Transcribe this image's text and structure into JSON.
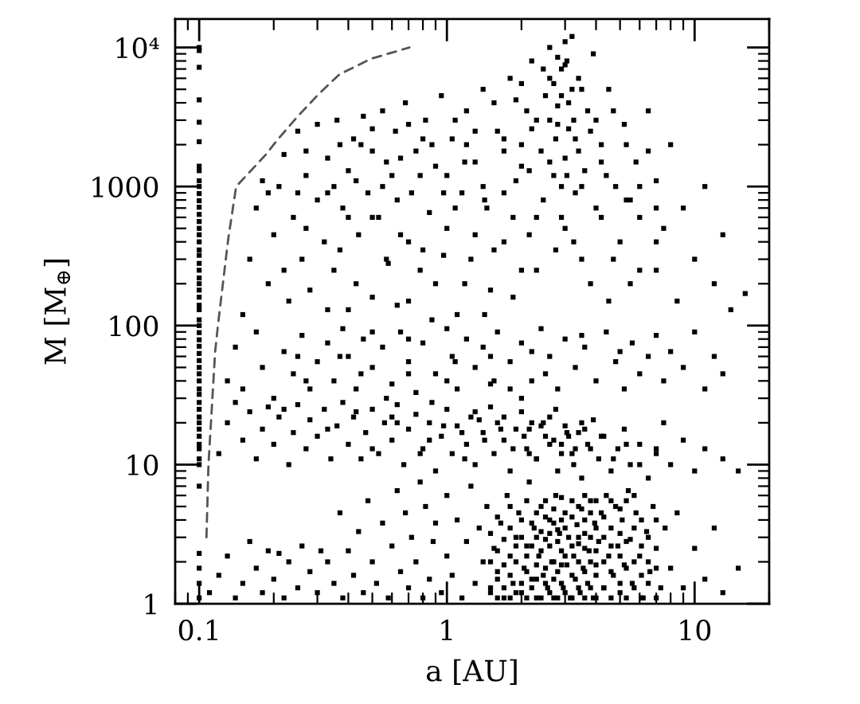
{
  "chart_data": {
    "type": "scatter",
    "xlabel": "a [AU]",
    "ylabel": "M [M$_{⊕}$]",
    "log": "xy",
    "xlim": [
      0.08,
      20
    ],
    "ylim": [
      1,
      16000
    ],
    "xticks": [
      0.1,
      1,
      10
    ],
    "yticks": [
      1,
      10,
      100,
      1000,
      {
        "value": 10000,
        "label": "10⁴"
      }
    ],
    "marker": "square",
    "series": [
      {
        "color": "#000000",
        "x": [
          0.15,
          0.16,
          0.17,
          0.18,
          0.19,
          0.2,
          0.21,
          0.22,
          0.23,
          0.24,
          0.25,
          0.26,
          0.27,
          0.28,
          0.3,
          0.3,
          0.32,
          0.33,
          0.35,
          0.36,
          0.38,
          0.4,
          0.4,
          0.42,
          0.44,
          0.46,
          0.48,
          0.5,
          0.5,
          0.53,
          0.55,
          0.58,
          0.6,
          0.62,
          0.65,
          0.68,
          0.7,
          0.72,
          0.75,
          0.8,
          0.82,
          0.85,
          0.9,
          0.9,
          0.95,
          1.0,
          1.05,
          1.1,
          1.15,
          1.2,
          1.25,
          1.3,
          1.4,
          1.45,
          1.5,
          1.6,
          1.7,
          1.8,
          1.9,
          2.0,
          2.1,
          2.2,
          2.3,
          2.4,
          2.5,
          2.6,
          2.7,
          2.8,
          2.9,
          3.0,
          3.0,
          3.1,
          3.2,
          3.3,
          3.3,
          3.4,
          3.5,
          3.6,
          3.7,
          3.9,
          4.0,
          4.2,
          4.5,
          4.5,
          4.8,
          5.0,
          5.2,
          5.5,
          5.8,
          6.0,
          6.5,
          7.0,
          7.0,
          7.5,
          8.0,
          8.5,
          9.0,
          10,
          11,
          12,
          13,
          14,
          16,
          2.7,
          2.8,
          3.0,
          3.1,
          3.2,
          2.9,
          3.4,
          2.6,
          3.0,
          2.8,
          0.35,
          0.45,
          0.55,
          0.65,
          0.8,
          1.0,
          1.2,
          1.4,
          1.7,
          2.0,
          2.2,
          4.0,
          4.4,
          5.5,
          6.5,
          1.9,
          0.4,
          0.25,
          0.19
        ],
        "values": [
          120,
          300,
          700,
          1100,
          200,
          450,
          1000,
          1700,
          150,
          600,
          2500,
          300,
          1200,
          180,
          800,
          2800,
          400,
          1600,
          250,
          3000,
          700,
          130,
          1300,
          2200,
          450,
          3200,
          900,
          160,
          1800,
          600,
          3500,
          280,
          1200,
          2500,
          450,
          4000,
          150,
          900,
          1800,
          350,
          3000,
          650,
          200,
          1400,
          4500,
          500,
          2200,
          120,
          900,
          3500,
          300,
          1500,
          5000,
          700,
          180,
          2500,
          400,
          6000,
          1100,
          250,
          3500,
          8000,
          600,
          1800,
          4500,
          10000,
          1200,
          2800,
          7000,
          500,
          1600,
          4000,
          12000,
          900,
          2200,
          6000,
          300,
          1300,
          3500,
          9000,
          700,
          2000,
          150,
          5000,
          1000,
          400,
          2800,
          200,
          1500,
          600,
          3500,
          250,
          1100,
          500,
          2000,
          150,
          700,
          300,
          1000,
          200,
          450,
          130,
          170,
          5500,
          3800,
          7500,
          2600,
          5000,
          1000,
          1800,
          3000,
          11000,
          8500,
          1000,
          2000,
          1000,
          1600,
          2200,
          1200,
          2000,
          1000,
          1800,
          1400,
          2600,
          3000,
          1200,
          800,
          1800,
          4200,
          600,
          900,
          900
        ]
      },
      {
        "color": "#000000",
        "x": [
          0.13,
          0.14,
          0.15,
          0.17,
          0.18,
          0.2,
          0.22,
          0.24,
          0.26,
          0.28,
          0.3,
          0.33,
          0.35,
          0.38,
          0.4,
          0.43,
          0.46,
          0.5,
          0.55,
          0.6,
          0.65,
          0.7,
          0.75,
          0.8,
          0.9,
          1.0,
          1.05,
          1.1,
          1.2,
          1.3,
          1.4,
          1.5,
          1.6,
          1.8,
          2.0,
          2.2,
          2.4,
          2.6,
          2.8,
          3.0,
          3.3,
          3.6,
          4.0,
          4.4,
          4.8,
          5.2,
          5.6,
          6.0,
          6.5,
          7.0,
          7.5,
          8.0,
          9.0,
          10,
          11,
          12,
          13,
          0.45,
          0.7,
          1.5,
          2.5,
          3.5,
          0.25,
          1.8,
          5.0,
          2.2,
          1.0
        ],
        "values": [
          40,
          70,
          35,
          90,
          50,
          30,
          65,
          45,
          85,
          35,
          55,
          75,
          40,
          95,
          60,
          35,
          80,
          50,
          70,
          38,
          90,
          55,
          33,
          75,
          45,
          95,
          60,
          35,
          80,
          50,
          70,
          38,
          90,
          55,
          75,
          40,
          95,
          60,
          35,
          80,
          50,
          70,
          40,
          90,
          55,
          35,
          75,
          45,
          60,
          85,
          40,
          65,
          50,
          90,
          35,
          60,
          45,
          45,
          80,
          60,
          45,
          85,
          60,
          35,
          65,
          65,
          40
        ]
      },
      {
        "color": "#000000",
        "x": [
          0.12,
          0.13,
          0.14,
          0.15,
          0.16,
          0.17,
          0.18,
          0.19,
          0.2,
          0.21,
          0.23,
          0.24,
          0.25,
          0.27,
          0.28,
          0.3,
          0.32,
          0.34,
          0.36,
          0.38,
          0.4,
          0.42,
          0.45,
          0.47,
          0.5,
          0.53,
          0.56,
          0.6,
          0.63,
          0.67,
          0.7,
          0.75,
          0.8,
          0.85,
          0.9,
          0.95,
          1.0,
          1.05,
          1.1,
          1.2,
          1.25,
          1.3,
          1.4,
          1.5,
          1.55,
          1.6,
          1.7,
          1.8,
          1.9,
          2.0,
          2.1,
          2.2,
          2.3,
          2.5,
          2.6,
          2.8,
          2.9,
          3.0,
          3.2,
          3.4,
          3.5,
          3.7,
          3.9,
          4.1,
          4.3,
          4.6,
          4.9,
          5.2,
          5.5,
          6.0,
          6.5,
          7.0,
          7.5,
          8.0,
          9.0,
          10,
          11,
          13,
          15,
          1.15,
          1.35,
          1.65,
          2.05,
          2.4,
          2.7,
          3.1,
          3.3,
          3.6,
          2.15,
          0.6,
          0.85
        ],
        "values": [
          12,
          20,
          28,
          15,
          24,
          11,
          18,
          26,
          14,
          22,
          10,
          17,
          27,
          13,
          21,
          16,
          25,
          11,
          19,
          28,
          14,
          22,
          11,
          17,
          25,
          12,
          20,
          15,
          27,
          10,
          18,
          23,
          13,
          20,
          9,
          16,
          25,
          12,
          19,
          14,
          22,
          10,
          17,
          26,
          12,
          20,
          15,
          9,
          18,
          24,
          13,
          20,
          11,
          16,
          22,
          9,
          14,
          19,
          12,
          17,
          8,
          14,
          21,
          11,
          16,
          9,
          13,
          18,
          10,
          14,
          8,
          12,
          20,
          10,
          15,
          9,
          13,
          11,
          9,
          17,
          21,
          18,
          16,
          19,
          15,
          16,
          13,
          18,
          12,
          22,
          15
        ]
      },
      {
        "color": "#000000",
        "x": [
          0.11,
          0.12,
          0.13,
          0.14,
          0.15,
          0.16,
          0.17,
          0.18,
          0.19,
          0.2,
          0.21,
          0.22,
          0.23,
          0.25,
          0.26,
          0.28,
          0.3,
          0.31,
          0.33,
          0.35,
          0.37,
          0.38,
          0.4,
          0.42,
          0.44,
          0.46,
          0.48,
          0.5,
          0.52,
          0.55,
          0.58,
          0.6,
          0.63,
          0.65,
          0.68,
          0.7,
          0.72,
          0.75,
          0.78,
          0.8,
          0.82,
          0.85,
          0.88,
          0.9,
          0.95,
          1.0,
          1.0,
          1.05,
          1.1,
          1.15,
          1.2,
          1.25,
          1.3,
          1.35,
          1.4,
          1.45,
          1.5,
          1.55,
          1.6,
          1.65,
          1.7,
          1.75,
          1.8,
          1.85,
          1.9,
          1.95,
          2.0,
          2.05,
          2.1,
          2.15,
          2.2,
          2.25,
          2.3,
          2.35,
          2.4,
          2.45,
          2.5,
          2.55,
          2.6,
          2.65,
          2.7,
          2.75,
          2.8,
          2.85,
          2.9,
          2.95,
          3.0,
          3.05,
          3.1,
          3.15,
          3.2,
          3.25,
          3.3,
          3.35,
          3.4,
          3.45,
          3.5,
          3.55,
          3.6,
          3.7,
          3.75,
          3.8,
          3.9,
          3.95,
          4.0,
          4.1,
          4.2,
          4.3,
          4.4,
          4.5,
          4.6,
          4.7,
          4.8,
          4.9,
          5.0,
          5.1,
          5.2,
          5.4,
          5.5,
          5.6,
          5.8,
          6.0,
          6.2,
          6.4,
          6.6,
          6.8,
          7.0,
          7.3,
          7.6,
          8.0,
          8.5,
          9.0,
          10,
          11,
          12,
          13,
          15
        ],
        "values": [
          1.2,
          1.6,
          2.2,
          1.1,
          1.4,
          2.8,
          1.8,
          1.2,
          2.4,
          1.5,
          2.3,
          1.1,
          2.0,
          1.3,
          2.6,
          1.7,
          1.2,
          2.4,
          2.0,
          1.4,
          4.5,
          1.1,
          2.4,
          1.6,
          3.3,
          1.2,
          5.5,
          2.0,
          1.4,
          3.8,
          1.1,
          2.6,
          6.5,
          1.7,
          4.5,
          1.3,
          3.0,
          2.0,
          7.5,
          1.1,
          5.0,
          1.5,
          2.8,
          3.8,
          1.2,
          2.2,
          6.0,
          1.6,
          4.0,
          1.1,
          2.8,
          7.0,
          1.4,
          3.5,
          2.0,
          5.0,
          1.2,
          2.5,
          1.7,
          3.8,
          1.1,
          6.0,
          2.2,
          1.4,
          3.0,
          4.5,
          1.2,
          1.8,
          2.6,
          7.5,
          1.5,
          3.5,
          1.1,
          2.2,
          5.0,
          1.6,
          2.9,
          1.3,
          4.0,
          2.0,
          1.1,
          6.0,
          1.7,
          3.2,
          2.4,
          1.3,
          4.5,
          1.9,
          3.0,
          1.1,
          5.5,
          2.2,
          1.5,
          3.7,
          2.7,
          1.2,
          4.8,
          1.8,
          3.2,
          1.4,
          2.4,
          5.5,
          1.1,
          3.8,
          1.9,
          2.8,
          4.5,
          1.3,
          6.0,
          2.2,
          3.5,
          1.6,
          5.0,
          2.6,
          1.2,
          4.0,
          1.9,
          6.5,
          2.9,
          1.4,
          4.5,
          2.2,
          1.1,
          3.3,
          1.7,
          5.0,
          2.5,
          1.3,
          3.5,
          1.8,
          4.5,
          1.3,
          2.5,
          1.5,
          3.5,
          1.2,
          1.8
        ]
      },
      {
        "color": "#000000",
        "x": [
          1.5,
          1.5,
          1.5,
          1.6,
          1.6,
          1.6,
          1.6,
          1.7,
          1.7,
          1.7,
          1.8,
          1.8,
          1.8,
          1.8,
          1.9,
          1.9,
          1.9,
          2.0,
          2.0,
          2.0,
          2.1,
          2.1,
          2.1,
          2.1,
          2.2,
          2.2,
          2.2,
          2.3,
          2.3,
          2.3,
          2.3,
          2.4,
          2.4,
          2.4,
          2.5,
          2.5,
          2.5,
          2.5,
          2.6,
          2.6,
          2.6,
          2.7,
          2.7,
          2.7,
          2.7,
          2.8,
          2.8,
          2.8,
          2.9,
          2.9,
          2.9,
          2.9,
          3.0,
          3.0,
          3.0,
          3.2,
          3.2,
          3.2,
          3.2,
          3.4,
          3.4,
          3.4,
          3.4,
          3.6,
          3.6,
          3.6,
          3.6,
          3.6,
          3.8,
          3.8,
          3.8,
          3.8,
          4.0,
          4.0,
          4.0,
          4.0,
          4.0,
          4.3,
          4.3,
          4.3,
          4.3,
          4.6,
          4.6,
          4.6,
          4.6,
          5.0,
          5.0,
          5.0,
          5.0,
          5.3,
          5.3,
          5.3,
          5.3,
          5.7,
          5.7,
          5.7,
          5.7,
          6.1,
          6.1,
          6.1,
          6.1,
          6.5,
          6.5,
          6.5,
          7.0,
          7.0,
          7.0
        ],
        "values": [
          1.3,
          2.0,
          3.2,
          1.1,
          1.5,
          2.4,
          4.2,
          1.3,
          1.9,
          2.9,
          1.1,
          1.6,
          3.5,
          5.0,
          1.2,
          2.0,
          2.6,
          1.4,
          3.0,
          4.0,
          1.1,
          1.7,
          2.2,
          5.5,
          1.3,
          2.6,
          3.8,
          1.5,
          1.9,
          3.0,
          4.5,
          1.1,
          2.4,
          3.3,
          1.4,
          1.8,
          4.2,
          5.5,
          1.2,
          2.6,
          3.2,
          1.5,
          2.0,
          3.8,
          4.8,
          1.1,
          2.8,
          3.4,
          1.4,
          1.9,
          4.0,
          5.8,
          1.2,
          2.2,
          3.5,
          1.1,
          1.6,
          2.6,
          4.2,
          1.3,
          2.0,
          3.0,
          5.0,
          1.1,
          1.7,
          2.5,
          4.0,
          6.0,
          1.3,
          2.0,
          3.0,
          4.5,
          1.1,
          1.6,
          2.4,
          3.5,
          5.5,
          1.3,
          2.0,
          3.0,
          4.2,
          1.1,
          1.7,
          2.6,
          5.5,
          1.4,
          2.2,
          3.2,
          4.8,
          1.1,
          1.8,
          2.8,
          5.5,
          1.3,
          2.0,
          3.5,
          6.0,
          1.1,
          1.6,
          2.6,
          4.0,
          1.4,
          2.0,
          3.0,
          1.1,
          1.8,
          4.0
        ]
      },
      {
        "color": "#000000",
        "x": [
          0.22,
          0.22,
          0.27,
          0.27,
          0.27,
          0.33,
          0.33,
          0.33,
          0.37,
          0.37,
          0.37,
          0.43,
          0.43,
          0.43,
          0.5,
          0.5,
          0.5,
          0.5,
          0.57,
          0.57,
          0.57,
          0.63,
          0.63,
          0.63,
          0.7,
          0.7,
          0.7,
          0.78,
          0.78,
          0.78,
          0.87,
          0.87,
          0.87,
          0.97,
          0.97,
          0.97,
          1.08,
          1.08,
          1.08,
          1.18,
          1.18,
          1.18,
          1.3,
          1.3,
          1.3,
          1.42,
          1.42,
          1.42,
          1.55,
          1.55,
          1.55,
          1.7,
          1.7,
          1.7,
          1.85,
          1.85,
          1.85,
          2.0,
          2.0,
          2.0,
          2.15,
          2.15,
          2.15,
          2.3,
          2.3,
          2.3,
          2.45,
          2.45,
          2.45,
          2.6,
          2.6,
          2.6,
          2.75,
          2.75,
          2.75,
          2.9,
          2.9,
          2.9,
          3.05,
          3.05,
          3.05,
          3.25,
          3.25,
          3.25,
          3.5,
          3.5,
          3.5,
          3.8,
          3.8,
          3.8,
          4.2,
          4.2,
          4.2,
          4.7,
          4.7,
          4.7,
          5.3,
          5.3,
          5.3,
          6.0,
          6.0,
          6.0,
          7.0,
          7.0,
          7.0
        ],
        "values": [
          25,
          250,
          40,
          500,
          1800,
          18,
          130,
          900,
          60,
          350,
          2000,
          24,
          200,
          1100,
          13,
          90,
          600,
          2600,
          30,
          300,
          1500,
          20,
          140,
          800,
          45,
          400,
          2800,
          12,
          250,
          1200,
          28,
          110,
          2000,
          19,
          320,
          900,
          55,
          700,
          3000,
          11,
          200,
          1500,
          24,
          450,
          2500,
          15,
          120,
          800,
          40,
          350,
          4000,
          22,
          900,
          2200,
          13,
          160,
          600,
          30,
          2000,
          5500,
          18,
          450,
          1300,
          11,
          250,
          3000,
          20,
          800,
          7000,
          14,
          1500,
          6000,
          25,
          350,
          2200,
          12,
          600,
          4500,
          17,
          1200,
          8000,
          10,
          400,
          3000,
          20,
          1000,
          5000,
          13,
          200,
          2500,
          16,
          600,
          1500,
          11,
          300,
          3500,
          14,
          800,
          2000,
          10,
          250,
          1000,
          13,
          400,
          700
        ]
      },
      {
        "color": "#000000",
        "x": [
          0.1,
          0.1,
          0.1,
          0.1,
          0.1,
          0.1,
          0.1,
          0.1,
          0.1,
          0.1,
          0.1,
          0.1,
          0.1,
          0.1,
          0.1,
          0.1,
          0.1,
          0.1,
          0.1,
          0.1,
          0.1,
          0.1,
          0.1,
          0.1,
          0.1,
          0.1,
          0.1,
          0.1,
          0.1,
          0.1,
          0.1,
          0.1,
          0.1,
          0.1,
          0.1,
          0.1,
          0.1,
          0.1,
          0.1,
          0.1,
          0.1,
          0.1,
          0.1,
          0.1,
          0.1,
          0.1,
          0.1,
          0.1,
          0.1,
          0.1,
          0.1,
          0.1,
          0.1,
          0.1,
          0.1
        ],
        "values": [
          1.1,
          1.4,
          1.8,
          2.3,
          7,
          10,
          11,
          13,
          14,
          16,
          18,
          20,
          22,
          25,
          28,
          32,
          35,
          40,
          45,
          50,
          56,
          63,
          71,
          79,
          89,
          100,
          110,
          130,
          140,
          160,
          180,
          200,
          220,
          250,
          280,
          320,
          350,
          400,
          450,
          500,
          560,
          630,
          710,
          790,
          890,
          1000,
          1100,
          1300,
          1400,
          2100,
          2900,
          4200,
          7200,
          9500,
          10000
        ]
      },
      {
        "type": "line",
        "color": "#555555",
        "line_style": "dashed",
        "marker": "none",
        "x": [
          0.107,
          0.109,
          0.116,
          0.119,
          0.131,
          0.141,
          0.186,
          0.204,
          0.25,
          0.303,
          0.368,
          0.495,
          0.706
        ],
        "values": [
          3,
          10,
          65,
          100,
          420,
          1000,
          1700,
          2100,
          3200,
          4600,
          6400,
          8300,
          10000
        ]
      }
    ]
  }
}
